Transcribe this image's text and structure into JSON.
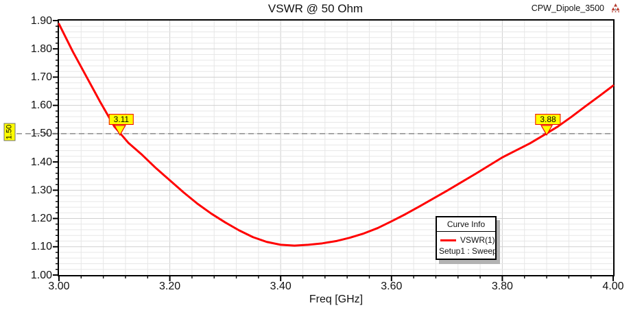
{
  "header": {
    "title": "VSWR @ 50 Ohm",
    "project_name": "CPW_Dipole_3500",
    "logo_icon": "ansys-triangle"
  },
  "legend": {
    "title": "Curve Info",
    "entries": [
      {
        "label": "VSWR(1)",
        "color": "#ff0000"
      }
    ],
    "sublabel": "Setup1 : Sweep"
  },
  "colors": {
    "curve": "#ff0000",
    "marker_fill": "#ffff00",
    "marker_border": "#ee0000",
    "ref_line": "#8c8c8c",
    "grid_minor": "#e7e7e7",
    "grid_major": "#cfcfcf",
    "axis": "#000000",
    "text": "#111111"
  },
  "chart_data": {
    "type": "line",
    "title": "VSWR @ 50 Ohm",
    "xlabel": "Freq [GHz]",
    "ylabel": "",
    "xlim": [
      3.0,
      4.0
    ],
    "ylim": [
      1.0,
      1.9
    ],
    "x_major_step": 0.2,
    "x_minor_step": 0.04,
    "y_major_step": 0.1,
    "y_minor_step": 0.02,
    "grid": true,
    "legend_position": "lower-right",
    "x_ticks": [
      "3.00",
      "3.20",
      "3.40",
      "3.60",
      "3.80",
      "4.00"
    ],
    "y_ticks": [
      "1.00",
      "1.10",
      "1.20",
      "1.30",
      "1.40",
      "1.50",
      "1.60",
      "1.70",
      "1.80",
      "1.90"
    ],
    "series": [
      {
        "name": "VSWR(1)",
        "setup": "Setup1 : Sweep",
        "x": [
          3.0,
          3.025,
          3.05,
          3.075,
          3.1,
          3.125,
          3.15,
          3.175,
          3.2,
          3.225,
          3.25,
          3.275,
          3.3,
          3.325,
          3.35,
          3.375,
          3.4,
          3.425,
          3.45,
          3.475,
          3.5,
          3.525,
          3.55,
          3.575,
          3.6,
          3.625,
          3.65,
          3.675,
          3.7,
          3.725,
          3.75,
          3.775,
          3.8,
          3.825,
          3.85,
          3.875,
          3.9,
          3.925,
          3.95,
          3.975,
          4.0
        ],
        "y": [
          1.888,
          1.79,
          1.7,
          1.61,
          1.525,
          1.468,
          1.425,
          1.378,
          1.335,
          1.292,
          1.252,
          1.217,
          1.186,
          1.158,
          1.134,
          1.117,
          1.107,
          1.104,
          1.107,
          1.112,
          1.12,
          1.132,
          1.147,
          1.166,
          1.19,
          1.215,
          1.242,
          1.27,
          1.298,
          1.327,
          1.356,
          1.386,
          1.416,
          1.441,
          1.466,
          1.495,
          1.525,
          1.56,
          1.597,
          1.633,
          1.67
        ]
      }
    ],
    "ref_line": {
      "value": 1.5,
      "label": "1.50"
    },
    "markers": [
      {
        "label": "3.11",
        "freq": 3.11,
        "vswr": 1.5
      },
      {
        "label": "3.88",
        "freq": 3.88,
        "vswr": 1.5
      }
    ]
  }
}
